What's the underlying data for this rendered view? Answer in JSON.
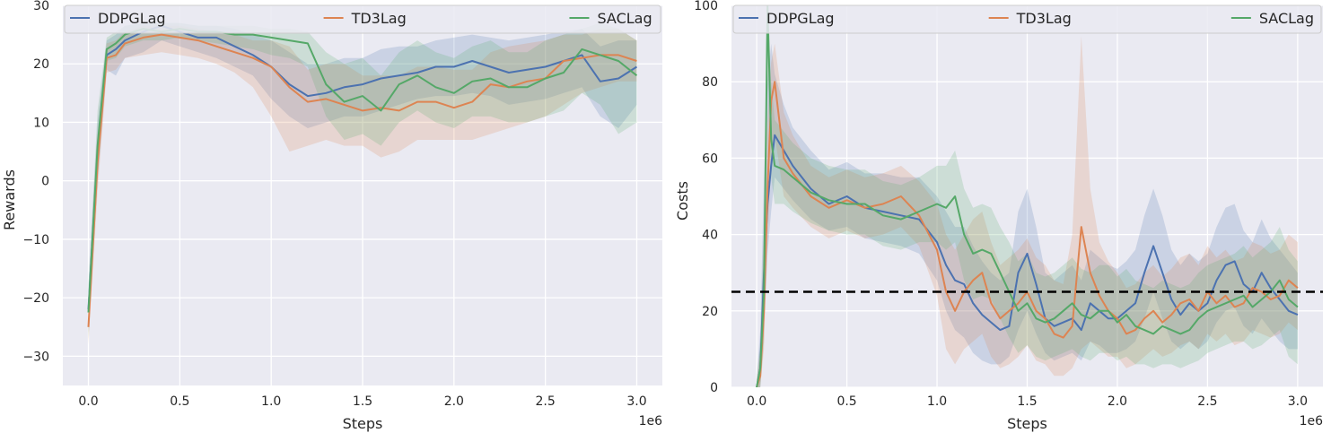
{
  "colors": {
    "DDPGLag": "#4c72b0",
    "TD3Lag": "#dd8452",
    "SACLag": "#55a868",
    "plot_bg": "#eaeaf2",
    "grid": "#ffffff",
    "threshold": "#000000"
  },
  "chart_data": [
    {
      "type": "line",
      "title": "",
      "xlabel": "Steps",
      "ylabel": "Rewards",
      "x_offset_text": "1e6",
      "xlim": [
        -0.14,
        3.14
      ],
      "ylim": [
        -35,
        30
      ],
      "xticks": [
        0.0,
        0.5,
        1.0,
        1.5,
        2.0,
        2.5,
        3.0
      ],
      "xtick_labels": [
        "0.0",
        "0.5",
        "1.0",
        "1.5",
        "2.0",
        "2.5",
        "3.0"
      ],
      "yticks": [
        -30,
        -20,
        -10,
        0,
        10,
        20,
        30
      ],
      "ytick_labels": [
        "−30",
        "−20",
        "−10",
        "0",
        "10",
        "20",
        "30"
      ],
      "grid": true,
      "legend_position": "top",
      "x": [
        0.0,
        0.05,
        0.1,
        0.15,
        0.2,
        0.3,
        0.4,
        0.5,
        0.6,
        0.7,
        0.8,
        0.9,
        1.0,
        1.1,
        1.2,
        1.3,
        1.4,
        1.5,
        1.6,
        1.7,
        1.8,
        1.9,
        2.0,
        2.1,
        2.2,
        2.3,
        2.4,
        2.5,
        2.6,
        2.7,
        2.8,
        2.9,
        3.0
      ],
      "series": [
        {
          "name": "DDPGLag",
          "values": [
            -22,
            5,
            21.5,
            22.5,
            24,
            25.5,
            26.5,
            25.5,
            24.5,
            24.5,
            23,
            21.5,
            19.5,
            16.5,
            14.5,
            15,
            16,
            16.5,
            17.5,
            18,
            18.5,
            19.5,
            19.5,
            20.5,
            19.5,
            18.5,
            19,
            19.5,
            20.5,
            21.5,
            17,
            17.5,
            19.5
          ],
          "lower": [
            -26,
            0,
            19,
            18,
            21,
            22,
            24,
            23,
            22,
            21,
            19.5,
            18,
            14,
            11,
            9,
            10,
            11,
            11,
            12,
            13,
            14,
            14.5,
            14.5,
            15,
            14.5,
            13,
            13.5,
            14,
            15,
            16,
            11,
            9,
            13
          ],
          "upper": [
            -18,
            10,
            24,
            25,
            26.5,
            27,
            27,
            27,
            26.5,
            26.5,
            26,
            25,
            24,
            22,
            20,
            20,
            21,
            21,
            22.5,
            23,
            23,
            24,
            24.5,
            25,
            24.5,
            24,
            24.5,
            25,
            25.5,
            26,
            23,
            24,
            24
          ]
        },
        {
          "name": "TD3Lag",
          "values": [
            -25,
            3,
            21,
            21.5,
            23.5,
            24.5,
            25,
            24.5,
            24,
            23,
            22,
            21,
            19.5,
            16,
            13.5,
            14,
            13,
            12,
            12.5,
            12,
            13.5,
            13.5,
            12.5,
            13.5,
            16.5,
            16,
            17,
            17.5,
            20.5,
            21,
            21.5,
            21.5,
            20.5
          ],
          "lower": [
            -28,
            -2,
            18.5,
            19,
            21,
            21.5,
            22,
            21.5,
            21,
            20,
            18.5,
            16,
            11,
            5,
            6,
            7,
            6,
            6,
            4,
            5,
            7,
            7,
            7,
            7,
            8,
            9,
            10,
            11,
            13,
            15,
            16,
            17,
            17
          ],
          "upper": [
            -22,
            8,
            23.5,
            24,
            25.5,
            26.5,
            26.5,
            26.5,
            26,
            25.5,
            25,
            24,
            24,
            23,
            19,
            20,
            20,
            18,
            18,
            18,
            19.5,
            19.5,
            19,
            19,
            22,
            23,
            23.5,
            24,
            25,
            25,
            26,
            26,
            24
          ]
        },
        {
          "name": "SACLag",
          "values": [
            -22.5,
            6,
            22.5,
            23.5,
            25,
            26,
            25.5,
            26,
            25.5,
            25.5,
            25,
            25,
            24.5,
            24,
            23.5,
            16.5,
            13.5,
            14.5,
            12,
            16.5,
            18,
            16,
            15,
            17,
            17.5,
            16,
            16,
            17.5,
            18.5,
            22.5,
            21.5,
            20.5,
            18
          ],
          "lower": [
            -27,
            0,
            20.5,
            21,
            23,
            24,
            24,
            24.5,
            24,
            23.5,
            23,
            22.5,
            21.5,
            21,
            19.5,
            11,
            7,
            8,
            6,
            10,
            12,
            10,
            9,
            11,
            11,
            10,
            10,
            11,
            12,
            15,
            13,
            8,
            10
          ],
          "upper": [
            -18,
            12,
            24.5,
            25.5,
            26.5,
            27,
            27,
            27,
            26.5,
            26.5,
            26.5,
            26.5,
            26,
            26,
            25.5,
            22,
            20,
            21,
            18,
            22,
            24,
            22,
            21,
            23,
            24,
            22,
            22,
            24,
            25,
            26,
            27,
            26,
            24
          ]
        }
      ]
    },
    {
      "type": "line",
      "title": "",
      "xlabel": "Steps",
      "ylabel": "Costs",
      "x_offset_text": "1e6",
      "xlim": [
        -0.14,
        3.14
      ],
      "ylim": [
        0,
        100
      ],
      "xticks": [
        0.0,
        0.5,
        1.0,
        1.5,
        2.0,
        2.5,
        3.0
      ],
      "xtick_labels": [
        "0.0",
        "0.5",
        "1.0",
        "1.5",
        "2.0",
        "2.5",
        "3.0"
      ],
      "yticks": [
        0,
        20,
        40,
        60,
        80,
        100
      ],
      "ytick_labels": [
        "0",
        "20",
        "40",
        "60",
        "80",
        "100"
      ],
      "grid": true,
      "legend_position": "top",
      "threshold": 25,
      "x": [
        0.0,
        0.02,
        0.04,
        0.06,
        0.08,
        0.1,
        0.15,
        0.2,
        0.3,
        0.4,
        0.5,
        0.6,
        0.7,
        0.8,
        0.9,
        1.0,
        1.05,
        1.1,
        1.15,
        1.2,
        1.25,
        1.3,
        1.35,
        1.4,
        1.45,
        1.5,
        1.55,
        1.6,
        1.65,
        1.7,
        1.75,
        1.8,
        1.85,
        1.9,
        1.95,
        2.0,
        2.05,
        2.1,
        2.15,
        2.2,
        2.25,
        2.3,
        2.35,
        2.4,
        2.45,
        2.5,
        2.55,
        2.6,
        2.65,
        2.7,
        2.75,
        2.8,
        2.85,
        2.9,
        2.95,
        3.0
      ],
      "series": [
        {
          "name": "DDPGLag",
          "values": [
            0,
            5,
            30,
            48,
            58,
            66,
            62,
            58,
            52,
            48,
            50,
            47,
            46,
            45,
            44,
            38,
            32,
            28,
            27,
            22,
            19,
            17,
            15,
            16,
            30,
            35,
            27,
            18,
            16,
            17,
            18,
            15,
            22,
            20,
            18,
            18,
            20,
            22,
            30,
            37,
            30,
            23,
            19,
            22,
            20,
            22,
            28,
            32,
            33,
            27,
            25,
            30,
            26,
            23,
            20,
            19
          ],
          "lower": [
            0,
            0,
            15,
            35,
            46,
            55,
            52,
            49,
            44,
            41,
            42,
            39,
            38,
            37,
            35,
            28,
            20,
            15,
            13,
            9,
            7,
            6,
            6,
            8,
            15,
            20,
            14,
            9,
            7,
            8,
            9,
            7,
            12,
            11,
            9,
            9,
            10,
            12,
            18,
            25,
            18,
            12,
            10,
            12,
            10,
            12,
            17,
            20,
            21,
            16,
            14,
            18,
            15,
            12,
            10,
            10
          ],
          "upper": [
            2,
            15,
            55,
            80,
            90,
            82,
            74,
            68,
            62,
            57,
            59,
            56,
            56,
            55,
            55,
            50,
            46,
            42,
            42,
            37,
            33,
            30,
            28,
            30,
            46,
            52,
            42,
            30,
            28,
            30,
            32,
            28,
            36,
            34,
            32,
            31,
            33,
            36,
            45,
            52,
            45,
            36,
            32,
            35,
            33,
            35,
            42,
            47,
            48,
            41,
            38,
            44,
            39,
            36,
            33,
            30
          ]
        },
        {
          "name": "TD3Lag",
          "values": [
            0,
            3,
            20,
            52,
            75,
            80,
            60,
            56,
            50,
            47,
            49,
            47,
            48,
            50,
            45,
            36,
            25,
            20,
            25,
            28,
            30,
            22,
            18,
            20,
            22,
            25,
            20,
            18,
            14,
            13,
            16,
            42,
            30,
            24,
            20,
            18,
            14,
            15,
            18,
            20,
            17,
            19,
            22,
            23,
            20,
            25,
            22,
            24,
            21,
            22,
            26,
            25,
            23,
            24,
            28,
            26
          ],
          "lower": [
            0,
            0,
            10,
            38,
            58,
            66,
            50,
            47,
            42,
            39,
            41,
            39,
            40,
            42,
            37,
            24,
            10,
            6,
            10,
            12,
            14,
            8,
            5,
            6,
            8,
            11,
            7,
            6,
            3,
            3,
            5,
            10,
            12,
            10,
            8,
            8,
            5,
            6,
            8,
            10,
            8,
            9,
            11,
            12,
            10,
            14,
            12,
            14,
            11,
            12,
            15,
            14,
            13,
            14,
            17,
            15
          ],
          "upper": [
            2,
            10,
            40,
            70,
            85,
            90,
            72,
            66,
            58,
            55,
            57,
            55,
            56,
            58,
            54,
            48,
            40,
            36,
            40,
            44,
            46,
            38,
            32,
            34,
            36,
            39,
            34,
            32,
            28,
            27,
            40,
            92,
            52,
            38,
            33,
            30,
            26,
            27,
            30,
            32,
            29,
            31,
            34,
            35,
            32,
            37,
            34,
            36,
            33,
            34,
            38,
            37,
            35,
            36,
            40,
            38
          ]
        },
        {
          "name": "SACLag",
          "values": [
            0,
            5,
            25,
            100,
            65,
            58,
            57,
            55,
            51,
            49,
            48,
            48,
            45,
            44,
            46,
            48,
            47,
            50,
            40,
            35,
            36,
            35,
            30,
            25,
            20,
            22,
            18,
            17,
            18,
            20,
            22,
            19,
            18,
            20,
            20,
            17,
            19,
            16,
            15,
            14,
            16,
            15,
            14,
            15,
            18,
            20,
            21,
            22,
            23,
            24,
            21,
            23,
            25,
            28,
            23,
            21
          ],
          "lower": [
            0,
            0,
            12,
            80,
            55,
            48,
            48,
            46,
            43,
            41,
            40,
            40,
            37,
            36,
            38,
            38,
            36,
            38,
            28,
            23,
            24,
            23,
            18,
            13,
            9,
            11,
            8,
            7,
            8,
            9,
            10,
            8,
            7,
            9,
            9,
            7,
            8,
            6,
            6,
            5,
            6,
            6,
            5,
            6,
            7,
            9,
            10,
            11,
            12,
            12,
            10,
            11,
            13,
            15,
            8,
            6
          ],
          "upper": [
            2,
            12,
            45,
            100,
            80,
            70,
            67,
            64,
            60,
            58,
            57,
            57,
            54,
            53,
            55,
            58,
            58,
            62,
            52,
            47,
            48,
            47,
            42,
            38,
            33,
            35,
            30,
            29,
            30,
            32,
            34,
            31,
            30,
            32,
            32,
            29,
            31,
            28,
            27,
            26,
            28,
            27,
            26,
            27,
            30,
            32,
            33,
            34,
            35,
            37,
            34,
            36,
            38,
            42,
            36,
            33
          ]
        }
      ]
    }
  ]
}
